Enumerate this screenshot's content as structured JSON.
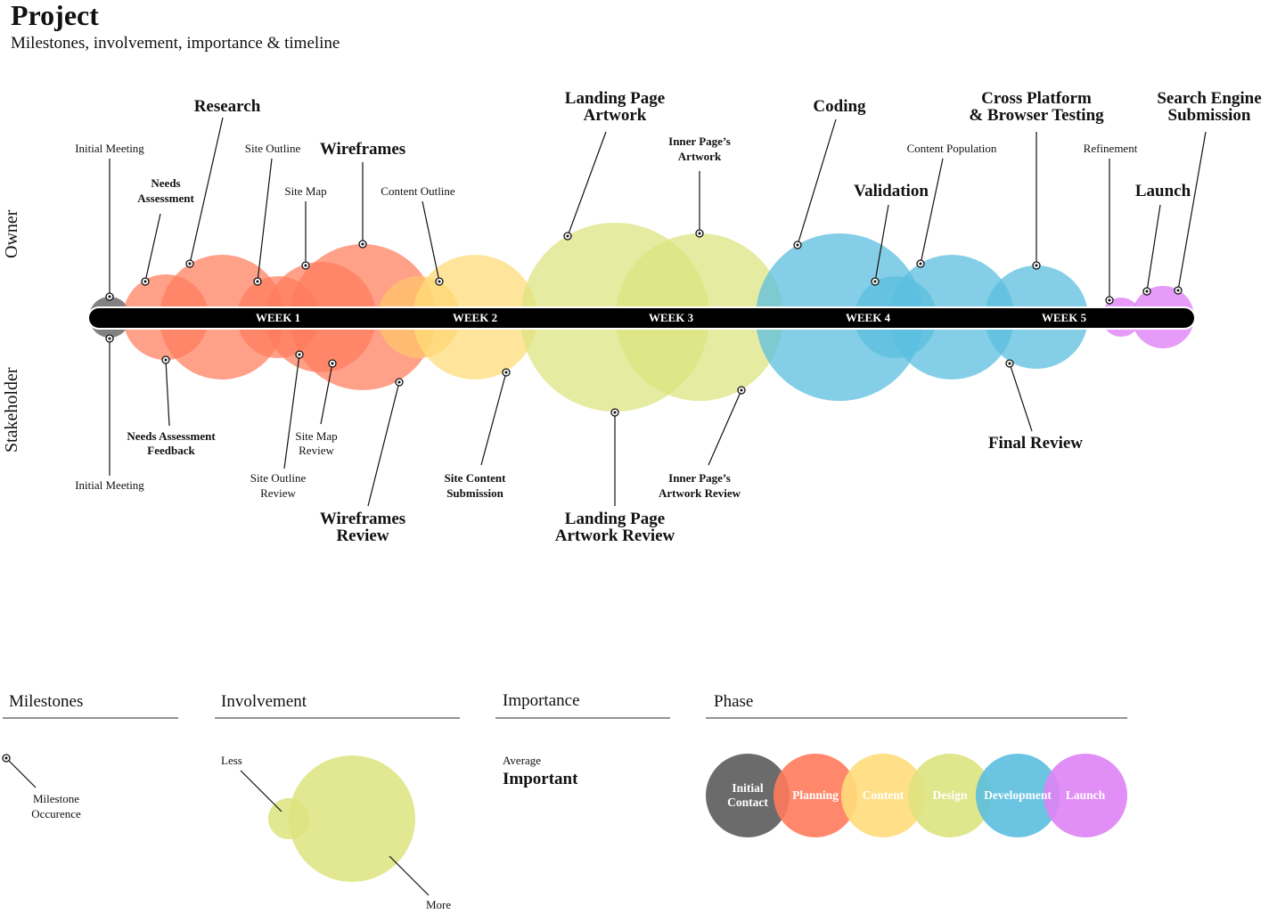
{
  "title": "Project",
  "subtitle": "Milestones, involvement, importance & timeline",
  "side_labels": {
    "owner": "Owner",
    "stakeholder": "Stakeholder"
  },
  "weeks": [
    "WEEK 1",
    "WEEK 2",
    "WEEK 3",
    "WEEK 4",
    "WEEK 5"
  ],
  "colors": {
    "initial_contact": "#6b6b6b",
    "planning": "#ff7b5c",
    "content": "#ffdc7a",
    "design": "#dde37e",
    "development": "#5bbfdf",
    "launch": "#de82f5",
    "timeline": "#000000"
  },
  "milestones": {
    "owner": {
      "initial_meeting": "Initial Meeting",
      "needs_assessment": [
        "Needs",
        "Assessment"
      ],
      "research": "Research",
      "site_outline": "Site Outline",
      "site_map": "Site Map",
      "wireframes": "Wireframes",
      "content_outline": "Content Outline",
      "landing_page_artwork": [
        "Landing Page",
        "Artwork"
      ],
      "inner_pages_artwork": [
        "Inner Page’s",
        "Artwork"
      ],
      "coding": "Coding",
      "validation": "Validation",
      "content_population": "Content Population",
      "cross_platform_testing": [
        "Cross Platform",
        "& Browser Testing"
      ],
      "refinement": "Refinement",
      "launch": "Launch",
      "search_engine_submission": [
        "Search Engine",
        "Submission"
      ]
    },
    "stakeholder": {
      "initial_meeting": "Initial Meeting",
      "needs_assessment_feedback": [
        "Needs Assessment",
        "Feedback"
      ],
      "site_outline_review": [
        "Site Outline",
        "Review"
      ],
      "site_map_review": [
        "Site Map",
        "Review"
      ],
      "wireframes_review": [
        "Wireframes",
        "Review"
      ],
      "site_content_submission": [
        "Site Content",
        "Submission"
      ],
      "landing_page_artwork_review": [
        "Landing Page",
        "Artwork Review"
      ],
      "inner_pages_artwork_review": [
        "Inner Page’s",
        "Artwork Review"
      ],
      "final_review": "Final Review"
    }
  },
  "legend": {
    "milestones": {
      "heading": "Milestones",
      "label": [
        "Milestone",
        "Occurence"
      ]
    },
    "involvement": {
      "heading": "Involvement",
      "less": "Less",
      "more": "More"
    },
    "importance": {
      "heading": "Importance",
      "average": "Average",
      "important": "Important"
    },
    "phase": {
      "heading": "Phase",
      "items": [
        {
          "label": [
            "Initial",
            "Contact"
          ],
          "color": "#6b6b6b"
        },
        {
          "label": [
            "Planning"
          ],
          "color": "#ff7b5c"
        },
        {
          "label": [
            "Content"
          ],
          "color": "#ffdc7a"
        },
        {
          "label": [
            "Design"
          ],
          "color": "#dde37e"
        },
        {
          "label": [
            "Development"
          ],
          "color": "#5bbfdf"
        },
        {
          "label": [
            "Launch"
          ],
          "color": "#de82f5"
        }
      ]
    }
  }
}
